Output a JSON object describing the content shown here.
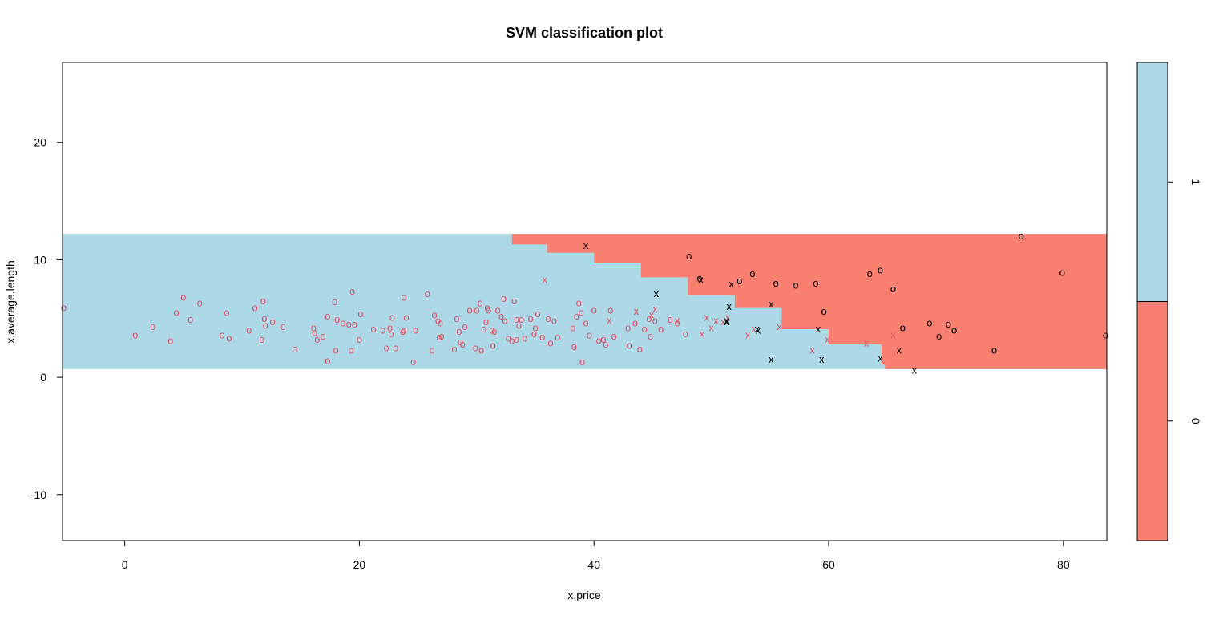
{
  "chart_data": {
    "type": "scatter",
    "title": "SVM classification plot",
    "xlabel": "x.price",
    "ylabel": "x.average.length",
    "xlim": [
      -5.3,
      83.7
    ],
    "ylim": [
      -13.9,
      26.8
    ],
    "x_ticks": [
      0,
      20,
      40,
      60,
      80
    ],
    "y_ticks": [
      -10,
      0,
      10,
      20
    ],
    "region_y_range": [
      0.7,
      12.2
    ],
    "region_colors": {
      "0": "#FA8072",
      "1": "#ADD8E6"
    },
    "decision_boundary": [
      [
        30.9,
        12.2
      ],
      [
        33.0,
        11.3
      ],
      [
        36.0,
        10.6
      ],
      [
        40.0,
        9.7
      ],
      [
        44.0,
        8.5
      ],
      [
        48.0,
        7.0
      ],
      [
        52.0,
        5.9
      ],
      [
        56.0,
        4.1
      ],
      [
        60.0,
        2.8
      ],
      [
        64.5,
        1.1
      ],
      [
        64.8,
        0.7
      ]
    ],
    "legend": {
      "levels": [
        "0",
        "1"
      ],
      "colors": [
        "#FA8072",
        "#ADD8E6"
      ]
    },
    "point_colors": {
      "1": "#DF536B",
      "0": "#000000"
    },
    "marker_meaning": {
      "o": "data point",
      "x": "support vector"
    },
    "series": [
      {
        "class": "1",
        "marker": "o",
        "points": [
          [
            -5.2,
            5.9
          ],
          [
            0.9,
            3.6
          ],
          [
            2.4,
            4.3
          ],
          [
            3.9,
            3.1
          ],
          [
            4.4,
            5.5
          ],
          [
            5.0,
            6.8
          ],
          [
            5.6,
            4.9
          ],
          [
            6.4,
            6.3
          ],
          [
            8.3,
            3.6
          ],
          [
            8.7,
            5.5
          ],
          [
            8.9,
            3.3
          ],
          [
            10.6,
            4.0
          ],
          [
            11.1,
            5.9
          ],
          [
            11.7,
            3.2
          ],
          [
            11.8,
            6.5
          ],
          [
            11.9,
            5.0
          ],
          [
            12.0,
            4.4
          ],
          [
            12.6,
            4.7
          ],
          [
            13.5,
            4.3
          ],
          [
            14.5,
            2.4
          ],
          [
            16.1,
            4.2
          ],
          [
            16.2,
            3.8
          ],
          [
            16.4,
            3.2
          ],
          [
            16.9,
            3.5
          ],
          [
            17.3,
            1.4
          ],
          [
            17.3,
            5.2
          ],
          [
            17.9,
            6.4
          ],
          [
            18.0,
            2.3
          ],
          [
            18.1,
            4.9
          ],
          [
            18.6,
            4.6
          ],
          [
            19.1,
            4.5
          ],
          [
            19.3,
            2.3
          ],
          [
            19.4,
            7.3
          ],
          [
            19.6,
            4.5
          ],
          [
            20.0,
            3.2
          ],
          [
            20.1,
            5.4
          ],
          [
            21.2,
            4.1
          ],
          [
            22.0,
            4.0
          ],
          [
            22.3,
            2.5
          ],
          [
            22.6,
            4.2
          ],
          [
            22.7,
            3.7
          ],
          [
            22.8,
            5.1
          ],
          [
            23.1,
            2.5
          ],
          [
            23.7,
            3.9
          ],
          [
            23.8,
            4.0
          ],
          [
            23.8,
            6.8
          ],
          [
            24.0,
            5.1
          ],
          [
            24.6,
            1.3
          ],
          [
            24.8,
            4.0
          ],
          [
            25.8,
            7.1
          ],
          [
            26.2,
            2.3
          ],
          [
            26.4,
            5.3
          ],
          [
            26.7,
            4.8
          ],
          [
            26.8,
            3.4
          ],
          [
            26.9,
            4.6
          ],
          [
            27.0,
            3.5
          ],
          [
            28.1,
            2.4
          ],
          [
            28.3,
            5.0
          ],
          [
            28.5,
            3.9
          ],
          [
            28.6,
            3.0
          ],
          [
            28.8,
            2.8
          ],
          [
            29.0,
            4.3
          ],
          [
            29.4,
            5.7
          ],
          [
            29.9,
            2.5
          ],
          [
            30.0,
            5.7
          ],
          [
            30.3,
            6.3
          ],
          [
            30.4,
            2.3
          ],
          [
            30.6,
            4.1
          ],
          [
            30.8,
            4.7
          ],
          [
            30.9,
            5.9
          ],
          [
            31.0,
            5.7
          ],
          [
            31.3,
            4.0
          ],
          [
            31.4,
            2.7
          ],
          [
            31.5,
            3.9
          ],
          [
            31.8,
            5.7
          ],
          [
            32.1,
            5.2
          ],
          [
            32.3,
            6.7
          ],
          [
            32.4,
            4.8
          ],
          [
            32.7,
            3.3
          ],
          [
            33.0,
            3.1
          ],
          [
            33.2,
            6.5
          ],
          [
            33.4,
            4.9
          ],
          [
            33.4,
            3.2
          ],
          [
            33.6,
            4.4
          ],
          [
            33.8,
            4.9
          ],
          [
            34.1,
            3.3
          ],
          [
            34.6,
            5.0
          ],
          [
            34.9,
            3.7
          ],
          [
            35.0,
            4.2
          ],
          [
            35.2,
            5.4
          ],
          [
            35.6,
            3.4
          ],
          [
            36.1,
            5.0
          ],
          [
            36.3,
            2.9
          ],
          [
            36.6,
            4.8
          ],
          [
            36.9,
            3.4
          ],
          [
            38.2,
            4.2
          ],
          [
            38.3,
            2.6
          ],
          [
            38.5,
            5.2
          ],
          [
            38.7,
            6.3
          ],
          [
            38.9,
            5.5
          ],
          [
            39.0,
            1.3
          ],
          [
            39.3,
            4.6
          ],
          [
            39.6,
            3.6
          ],
          [
            40.0,
            5.7
          ],
          [
            40.4,
            3.1
          ],
          [
            40.8,
            3.2
          ],
          [
            41.0,
            2.8
          ],
          [
            41.4,
            5.7
          ],
          [
            41.7,
            3.5
          ],
          [
            42.9,
            4.2
          ],
          [
            43.0,
            2.7
          ],
          [
            43.5,
            4.6
          ],
          [
            43.9,
            2.4
          ],
          [
            44.3,
            4.1
          ],
          [
            44.7,
            5.0
          ],
          [
            44.8,
            3.5
          ],
          [
            45.2,
            4.8
          ],
          [
            45.7,
            4.1
          ],
          [
            46.5,
            4.9
          ],
          [
            47.1,
            4.6
          ],
          [
            47.8,
            3.7
          ]
        ]
      },
      {
        "class": "1",
        "marker": "x",
        "points": [
          [
            35.8,
            8.3
          ],
          [
            41.3,
            4.8
          ],
          [
            43.6,
            5.6
          ],
          [
            44.9,
            5.3
          ],
          [
            45.2,
            5.8
          ],
          [
            47.1,
            4.8
          ],
          [
            49.2,
            3.7
          ],
          [
            49.6,
            5.1
          ],
          [
            50.0,
            4.2
          ],
          [
            50.4,
            4.8
          ],
          [
            51.0,
            4.7
          ],
          [
            51.4,
            5.1
          ],
          [
            53.1,
            3.6
          ],
          [
            53.6,
            4.1
          ],
          [
            55.8,
            4.3
          ],
          [
            58.6,
            2.3
          ],
          [
            59.9,
            3.2
          ],
          [
            63.2,
            2.9
          ],
          [
            65.5,
            3.6
          ]
        ]
      },
      {
        "class": "0",
        "marker": "o",
        "points": [
          [
            48.1,
            10.3
          ],
          [
            49.0,
            8.4
          ],
          [
            52.4,
            8.2
          ],
          [
            53.5,
            8.8
          ],
          [
            55.5,
            8.0
          ],
          [
            57.2,
            7.8
          ],
          [
            58.9,
            8.0
          ],
          [
            59.6,
            5.6
          ],
          [
            63.5,
            8.8
          ],
          [
            64.4,
            9.1
          ],
          [
            65.5,
            7.5
          ],
          [
            66.3,
            4.2
          ],
          [
            68.6,
            4.6
          ],
          [
            69.4,
            3.5
          ],
          [
            70.2,
            4.5
          ],
          [
            70.7,
            4.0
          ],
          [
            74.1,
            2.3
          ],
          [
            76.4,
            12.0
          ],
          [
            79.9,
            8.9
          ],
          [
            83.6,
            3.6
          ]
        ]
      },
      {
        "class": "0",
        "marker": "x",
        "points": [
          [
            39.3,
            11.2
          ],
          [
            45.3,
            7.1
          ],
          [
            49.1,
            8.3
          ],
          [
            51.3,
            4.8
          ],
          [
            51.3,
            4.7
          ],
          [
            51.5,
            6.0
          ],
          [
            51.7,
            7.9
          ],
          [
            53.9,
            4.1
          ],
          [
            54.0,
            4.0
          ],
          [
            55.1,
            6.2
          ],
          [
            55.1,
            1.5
          ],
          [
            59.1,
            4.1
          ],
          [
            59.4,
            1.5
          ],
          [
            64.4,
            1.6
          ],
          [
            66.0,
            2.3
          ],
          [
            67.3,
            0.6
          ]
        ]
      }
    ]
  }
}
